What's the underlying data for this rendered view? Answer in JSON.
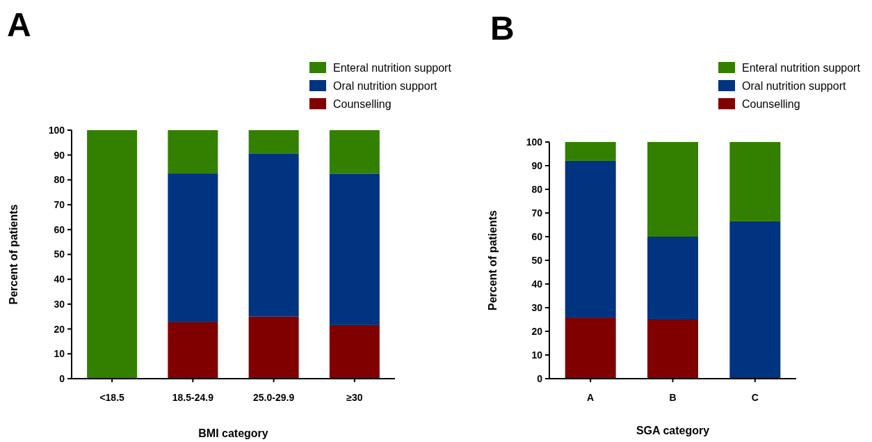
{
  "chart_data": [
    {
      "type": "bar",
      "title": "A",
      "xlabel": "BMI category",
      "ylabel": "Percent of patients",
      "categories": [
        "<18.5",
        "18.5-24.9",
        "25.0-29.9",
        "≥30"
      ],
      "stacked": true,
      "ylim": [
        0,
        100
      ],
      "yticks": [
        0,
        10,
        20,
        30,
        40,
        50,
        60,
        70,
        80,
        90,
        100
      ],
      "legend": "top right",
      "grid": false,
      "series": [
        {
          "name": "Counselling",
          "color": "#800000",
          "values": [
            0,
            22.7,
            25,
            21.6
          ]
        },
        {
          "name": "Oral nutrition support",
          "color": "#003380",
          "values": [
            0,
            59.9,
            65.5,
            60.8
          ]
        },
        {
          "name": "Enteral nutrition support",
          "color": "#338000",
          "values": [
            100,
            17.4,
            9.5,
            17.6
          ]
        }
      ]
    },
    {
      "type": "bar",
      "title": "B",
      "xlabel": "SGA category",
      "ylabel": "Percent of patients",
      "categories": [
        "A",
        "B",
        "C"
      ],
      "stacked": true,
      "ylim": [
        0,
        100
      ],
      "yticks": [
        0,
        10,
        20,
        30,
        40,
        50,
        60,
        70,
        80,
        90,
        100
      ],
      "legend": "top right",
      "grid": false,
      "series": [
        {
          "name": "Counselling",
          "color": "#800000",
          "values": [
            25.6,
            25,
            0
          ]
        },
        {
          "name": "Oral nutrition support",
          "color": "#003380",
          "values": [
            66.5,
            35,
            66.5
          ]
        },
        {
          "name": "Enteral nutrition support",
          "color": "#338000",
          "values": [
            7.9,
            40,
            33.5
          ]
        }
      ]
    }
  ]
}
